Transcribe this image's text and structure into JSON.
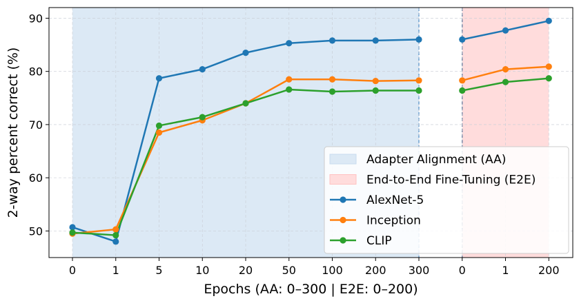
{
  "chart_data": {
    "type": "line",
    "xlabel": "Epochs (AA: 0–300  |  E2E: 0–200)",
    "ylabel": "2-way percent correct (%)",
    "ylim": [
      45,
      92
    ],
    "yticks": [
      50,
      60,
      70,
      80,
      90
    ],
    "categories": [
      "0",
      "1",
      "5",
      "10",
      "20",
      "50",
      "100",
      "200",
      "300",
      "0",
      "1",
      "200"
    ],
    "grid": true,
    "legend_position": "lower-right",
    "phases": [
      {
        "name": "Adapter Alignment (AA)",
        "color": "#dce9f5",
        "start_index": 0,
        "end_index": 8
      },
      {
        "name": "End-to-End Fine-Tuning (E2E)",
        "color": "#ffdcdc",
        "start_index": 9,
        "end_index": 11
      }
    ],
    "series": [
      {
        "name": "AlexNet-5",
        "color": "#1f77b4",
        "segments": [
          {
            "indices": [
              0,
              1,
              2,
              3,
              4,
              5,
              6,
              7,
              8
            ],
            "values": [
              50.7,
              48.0,
              78.7,
              80.4,
              83.5,
              85.3,
              85.8,
              85.8,
              86.0
            ]
          },
          {
            "indices": [
              9,
              10,
              11
            ],
            "values": [
              86.0,
              87.7,
              89.5
            ]
          }
        ]
      },
      {
        "name": "Inception",
        "color": "#ff7f0e",
        "segments": [
          {
            "indices": [
              0,
              1,
              2,
              3,
              4,
              5,
              6,
              7,
              8
            ],
            "values": [
              49.5,
              50.3,
              68.5,
              70.8,
              74.0,
              78.5,
              78.5,
              78.2,
              78.3
            ]
          },
          {
            "indices": [
              9,
              10,
              11
            ],
            "values": [
              78.3,
              80.4,
              80.9
            ]
          }
        ]
      },
      {
        "name": "CLIP",
        "color": "#2ca02c",
        "segments": [
          {
            "indices": [
              0,
              1,
              2,
              3,
              4,
              5,
              6,
              7,
              8
            ],
            "values": [
              49.7,
              49.2,
              69.8,
              71.4,
              74.0,
              76.6,
              76.2,
              76.4,
              76.4
            ]
          },
          {
            "indices": [
              9,
              10,
              11
            ],
            "values": [
              76.4,
              78.0,
              78.7
            ]
          }
        ]
      }
    ]
  }
}
